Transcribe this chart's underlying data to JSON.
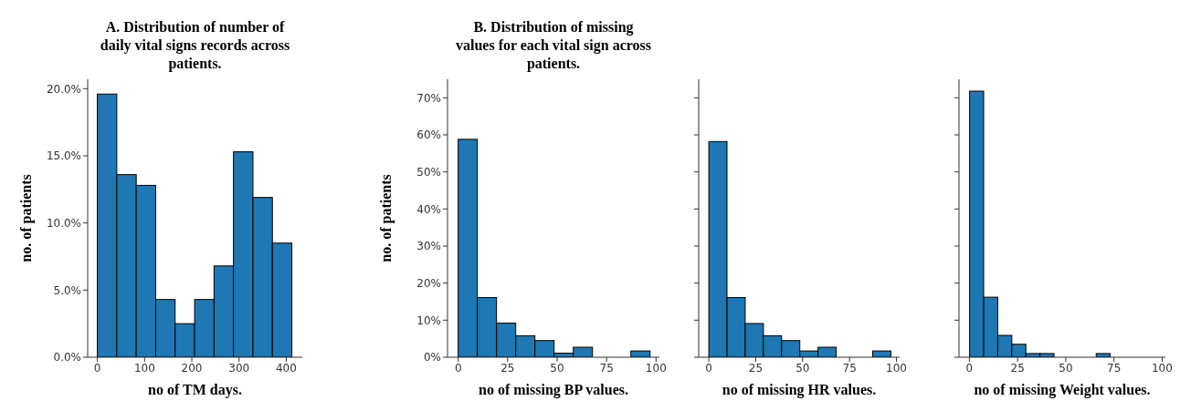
{
  "chart_data": [
    {
      "type": "histogram",
      "title": "A. Distribution of number of daily vital signs records across patients.",
      "xlabel": "no of TM days.",
      "ylabel": "no. of patients",
      "color": "#1f77b4",
      "bins": [
        0,
        41.2,
        82.4,
        123.6,
        164.8,
        206,
        247.2,
        288.4,
        329.6,
        370.8,
        412
      ],
      "values": [
        19.6,
        13.6,
        12.8,
        4.3,
        2.5,
        4.3,
        6.8,
        15.3,
        11.9,
        8.5
      ],
      "xlim": [
        -20.6,
        434
      ],
      "xticks": [
        0,
        100,
        200,
        300,
        400
      ],
      "ylim": [
        0,
        20.7
      ],
      "yticks": [
        {
          "value": 0,
          "label": "0.0%"
        },
        {
          "value": 5,
          "label": "5.0%"
        },
        {
          "value": 10,
          "label": "10.0%"
        },
        {
          "value": 15,
          "label": "15.0%"
        },
        {
          "value": 20,
          "label": "20.0%"
        }
      ]
    },
    {
      "type": "histogram",
      "title": "B. Distribution of missing values for each vital sign across patients.",
      "xlabel": "no of missing BP values.",
      "ylabel": "no. of patients",
      "color": "#1f77b4",
      "bins": [
        0,
        9.7,
        19.4,
        29.1,
        38.8,
        48.5,
        58.2,
        67.9,
        77.6,
        87.3,
        97
      ],
      "values": [
        58.8,
        16.1,
        9.2,
        5.8,
        4.5,
        1.1,
        2.7,
        0,
        0,
        1.7
      ],
      "xlim": [
        -5.4,
        101.7
      ],
      "xticks": [
        0,
        25,
        50,
        75,
        100
      ],
      "ylim": [
        0,
        75
      ],
      "yticks": [
        {
          "value": 0,
          "label": "0%"
        },
        {
          "value": 10,
          "label": "10%"
        },
        {
          "value": 20,
          "label": "20%"
        },
        {
          "value": 30,
          "label": "30%"
        },
        {
          "value": 40,
          "label": "40%"
        },
        {
          "value": 50,
          "label": "50%"
        },
        {
          "value": 60,
          "label": "60%"
        },
        {
          "value": 70,
          "label": "70%"
        }
      ]
    },
    {
      "type": "histogram",
      "xlabel": "no of missing HR values.",
      "color": "#1f77b4",
      "bins": [
        0,
        9.7,
        19.4,
        29.1,
        38.8,
        48.5,
        58.2,
        67.9,
        77.6,
        87.3,
        97
      ],
      "values": [
        58.2,
        16.1,
        9.1,
        5.8,
        4.5,
        1.7,
        2.7,
        0,
        0,
        1.7
      ],
      "xlim": [
        -5.4,
        101.7
      ],
      "xticks": [
        0,
        25,
        50,
        75,
        100
      ],
      "ylim": [
        0,
        75
      ],
      "yticks": [
        {
          "value": 0,
          "label": null
        },
        {
          "value": 10,
          "label": null
        },
        {
          "value": 20,
          "label": null
        },
        {
          "value": 30,
          "label": null
        },
        {
          "value": 40,
          "label": null
        },
        {
          "value": 50,
          "label": null
        },
        {
          "value": 60,
          "label": null
        },
        {
          "value": 70,
          "label": null
        }
      ],
      "tick_labels": "x"
    },
    {
      "type": "histogram",
      "xlabel": "no of missing Weight values.",
      "color": "#1f77b4",
      "bins": [
        0,
        7.3,
        14.6,
        21.9,
        29.2,
        36.5,
        43.8,
        51.1,
        58.4,
        65.7,
        73
      ],
      "values": [
        71.8,
        16.2,
        5.9,
        3.5,
        1.0,
        1.0,
        0,
        0,
        0,
        1.0
      ],
      "xlim": [
        -5.4,
        101.7
      ],
      "xticks": [
        0,
        25,
        50,
        75,
        100
      ],
      "ylim": [
        0,
        75
      ],
      "yticks": [
        {
          "value": 0,
          "label": null
        },
        {
          "value": 10,
          "label": null
        },
        {
          "value": 20,
          "label": null
        },
        {
          "value": 30,
          "label": null
        },
        {
          "value": 40,
          "label": null
        },
        {
          "value": 50,
          "label": null
        },
        {
          "value": 60,
          "label": null
        },
        {
          "value": 70,
          "label": null
        }
      ],
      "tick_labels": "x"
    }
  ]
}
